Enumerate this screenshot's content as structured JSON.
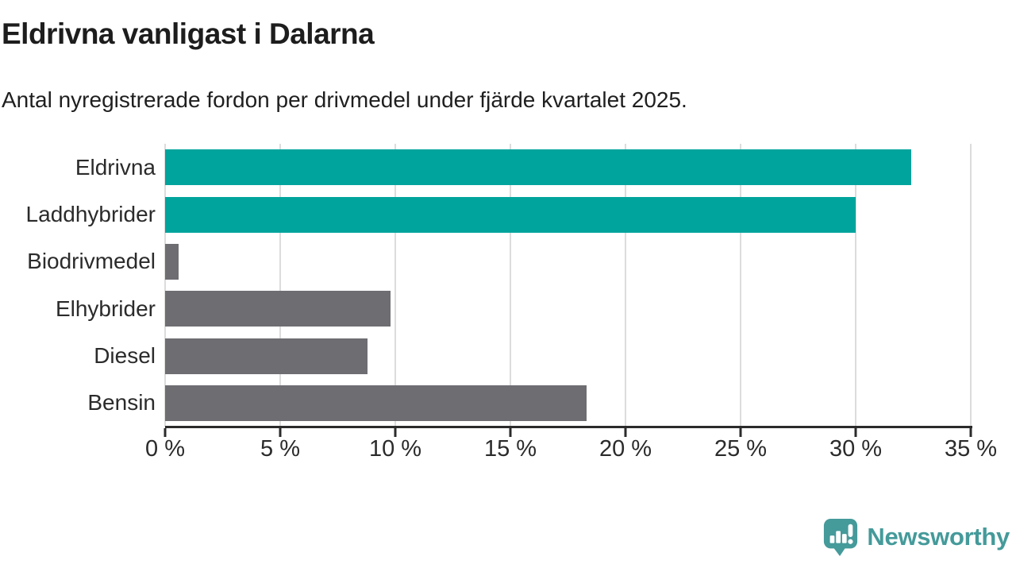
{
  "chart_data": {
    "type": "bar",
    "orientation": "horizontal",
    "title": "Eldrivna vanligast i Dalarna",
    "subtitle": "Antal nyregistrerade fordon per drivmedel under fjärde kvartalet 2025.",
    "categories": [
      "Eldrivna",
      "Laddhybrider",
      "Biodrivmedel",
      "Elhybrider",
      "Diesel",
      "Bensin"
    ],
    "values": [
      32.4,
      30.0,
      0.6,
      9.8,
      8.8,
      18.3
    ],
    "bar_colors": [
      "#00a49c",
      "#00a49c",
      "#6e6d72",
      "#6e6d72",
      "#6e6d72",
      "#6e6d72"
    ],
    "xlabel": "",
    "ylabel": "",
    "xlim": [
      0,
      35
    ],
    "xticks": [
      0,
      5,
      10,
      15,
      20,
      25,
      30,
      35
    ],
    "xtick_suffix": " %",
    "grid": "vertical",
    "legend": "none",
    "colors": {
      "highlight": "#00a49c",
      "default": "#6e6d72",
      "axis": "#2b2b2b",
      "gridline": "#dcdcdc"
    }
  },
  "footer": {
    "brand": "Newsworthy",
    "brand_color": "#459a9a"
  }
}
